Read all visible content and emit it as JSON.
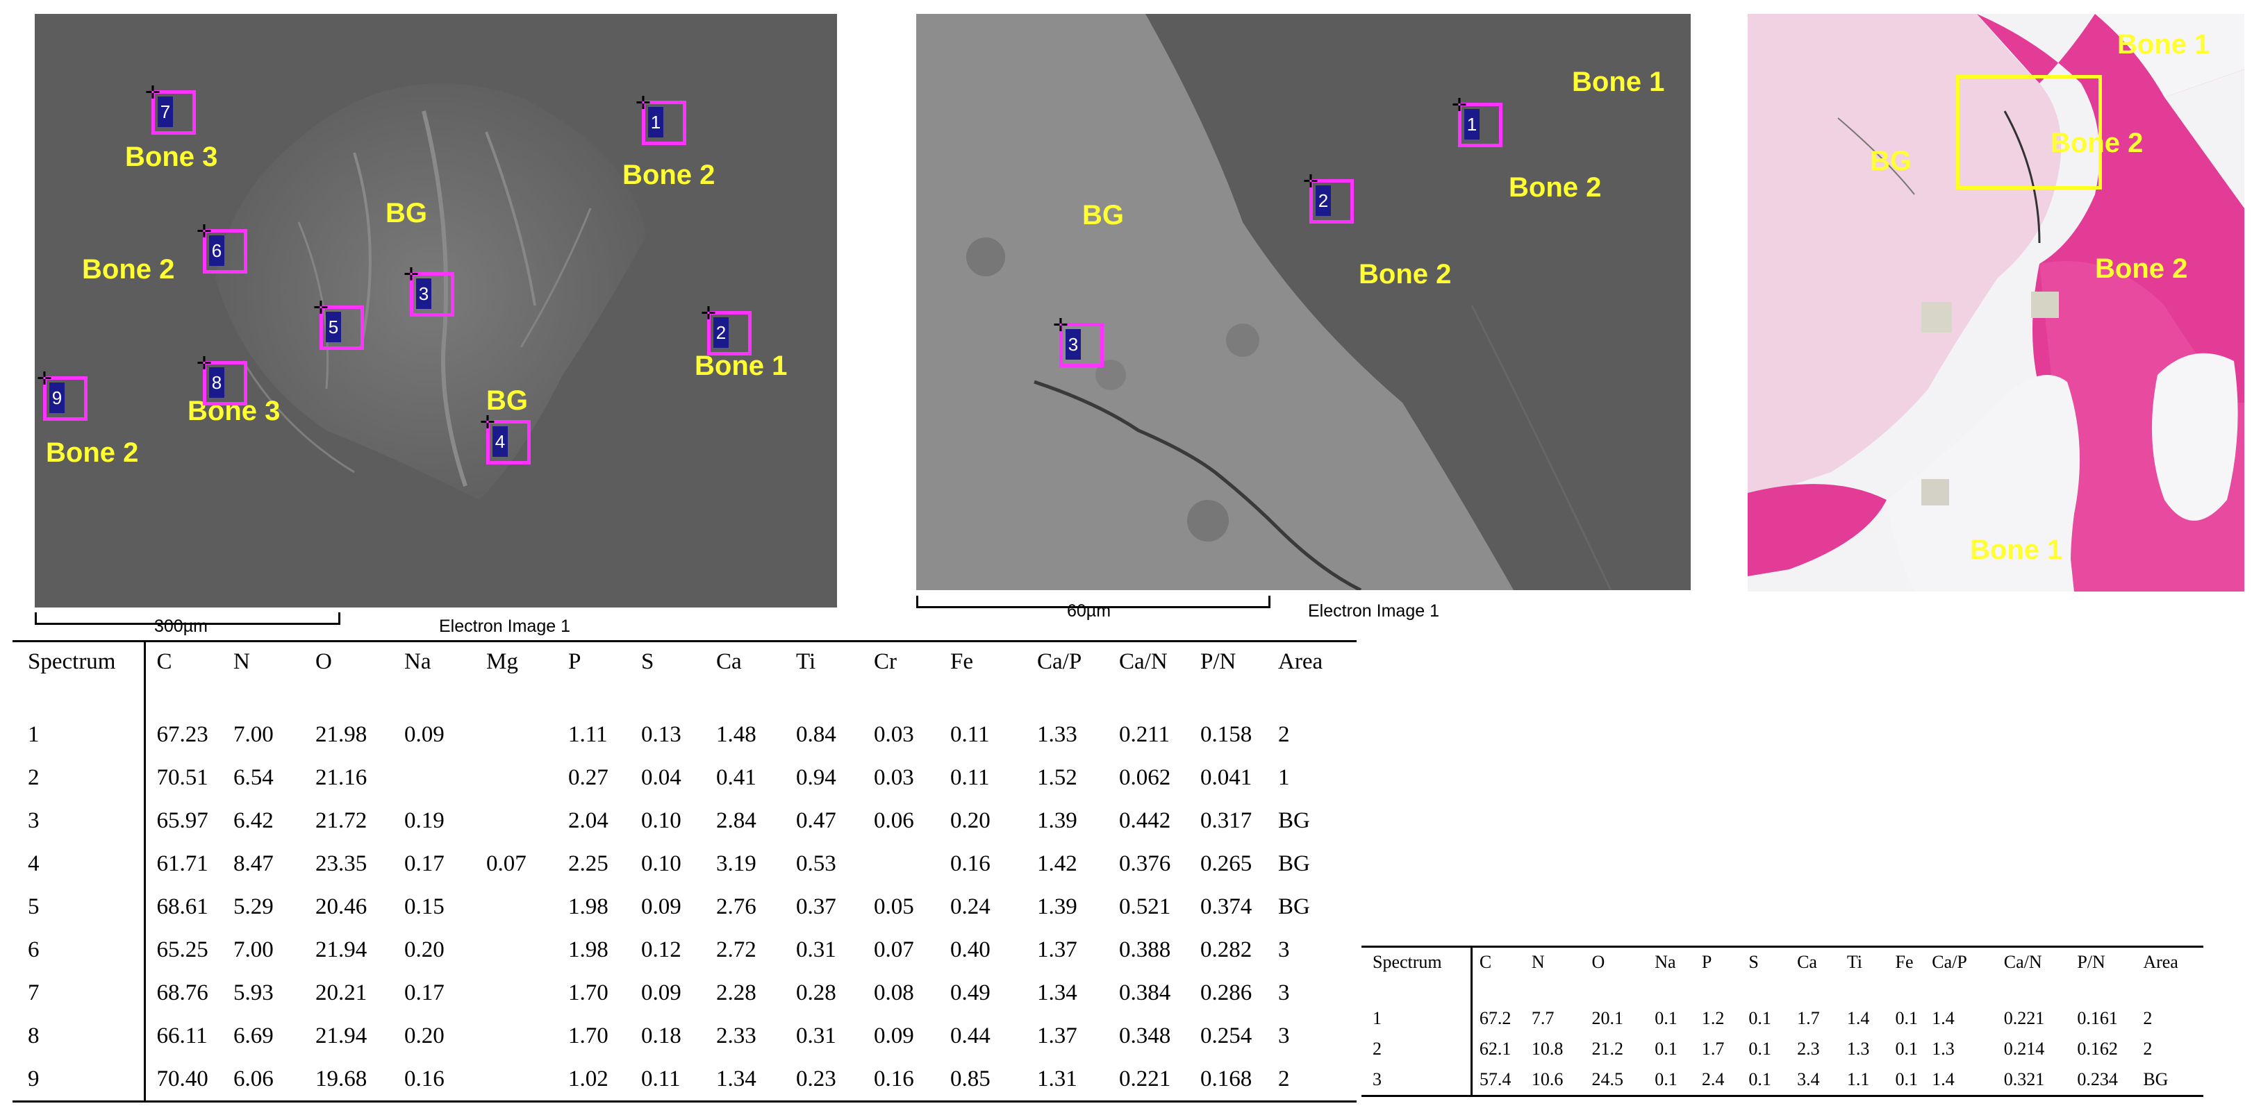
{
  "image1": {
    "labels": [
      "Bone 3",
      "Bone 2",
      "BG",
      "Bone 2",
      "Bone 2",
      "BG",
      "Bone 1",
      "Bone 3",
      "Bone 2"
    ],
    "spots": [
      "7",
      "1",
      "6",
      "3",
      "5",
      "2",
      "9",
      "8",
      "4"
    ],
    "scale_label": "300µm",
    "caption": "Electron Image 1"
  },
  "image2": {
    "labels": [
      "Bone 1",
      "Bone 2",
      "BG",
      "Bone 2"
    ],
    "spots": [
      "1",
      "2",
      "3"
    ],
    "scale_label": "60µm",
    "caption": "Electron Image 1"
  },
  "image3": {
    "labels": [
      "Bone 1",
      "BG",
      "Bone 2",
      "Bone 2",
      "Bone 1"
    ]
  },
  "table1": {
    "headers": [
      "Spectrum",
      "C",
      "N",
      "O",
      "Na",
      "Mg",
      "P",
      "S",
      "Ca",
      "Ti",
      "Cr",
      "Fe",
      "Ca/P",
      "Ca/N",
      "P/N",
      "Area"
    ],
    "rows": [
      [
        "1",
        "67.23",
        "7.00",
        "21.98",
        "0.09",
        "",
        "1.11",
        "0.13",
        "1.48",
        "0.84",
        "0.03",
        "0.11",
        "1.33",
        "0.211",
        "0.158",
        "2"
      ],
      [
        "2",
        "70.51",
        "6.54",
        "21.16",
        "",
        "",
        "0.27",
        "0.04",
        "0.41",
        "0.94",
        "0.03",
        "0.11",
        "1.52",
        "0.062",
        "0.041",
        "1"
      ],
      [
        "3",
        "65.97",
        "6.42",
        "21.72",
        "0.19",
        "",
        "2.04",
        "0.10",
        "2.84",
        "0.47",
        "0.06",
        "0.20",
        "1.39",
        "0.442",
        "0.317",
        "BG"
      ],
      [
        "4",
        "61.71",
        "8.47",
        "23.35",
        "0.17",
        "0.07",
        "2.25",
        "0.10",
        "3.19",
        "0.53",
        "",
        "0.16",
        "1.42",
        "0.376",
        "0.265",
        "BG"
      ],
      [
        "5",
        "68.61",
        "5.29",
        "20.46",
        "0.15",
        "",
        "1.98",
        "0.09",
        "2.76",
        "0.37",
        "0.05",
        "0.24",
        "1.39",
        "0.521",
        "0.374",
        "BG"
      ],
      [
        "6",
        "65.25",
        "7.00",
        "21.94",
        "0.20",
        "",
        "1.98",
        "0.12",
        "2.72",
        "0.31",
        "0.07",
        "0.40",
        "1.37",
        "0.388",
        "0.282",
        "3"
      ],
      [
        "7",
        "68.76",
        "5.93",
        "20.21",
        "0.17",
        "",
        "1.70",
        "0.09",
        "2.28",
        "0.28",
        "0.08",
        "0.49",
        "1.34",
        "0.384",
        "0.286",
        "3"
      ],
      [
        "8",
        "66.11",
        "6.69",
        "21.94",
        "0.20",
        "",
        "1.70",
        "0.18",
        "2.33",
        "0.31",
        "0.09",
        "0.44",
        "1.37",
        "0.348",
        "0.254",
        "3"
      ],
      [
        "9",
        "70.40",
        "6.06",
        "19.68",
        "0.16",
        "",
        "1.02",
        "0.11",
        "1.34",
        "0.23",
        "0.16",
        "0.85",
        "1.31",
        "0.221",
        "0.168",
        "2"
      ]
    ]
  },
  "table2": {
    "headers": [
      "Spectrum",
      "C",
      "N",
      "O",
      "Na",
      "P",
      "S",
      "Ca",
      "Ti",
      "Fe",
      "Ca/P",
      "Ca/N",
      "P/N",
      "Area"
    ],
    "rows": [
      [
        "1",
        "67.2",
        "7.7",
        "20.1",
        "0.1",
        "1.2",
        "0.1",
        "1.7",
        "1.4",
        "0.1",
        "1.4",
        "0.221",
        "0.161",
        "2"
      ],
      [
        "2",
        "62.1",
        "10.8",
        "21.2",
        "0.1",
        "1.7",
        "0.1",
        "2.3",
        "1.3",
        "0.1",
        "1.3",
        "0.214",
        "0.162",
        "2"
      ],
      [
        "3",
        "57.4",
        "10.6",
        "24.5",
        "0.1",
        "2.4",
        "0.1",
        "3.4",
        "1.1",
        "0.1",
        "1.4",
        "0.321",
        "0.234",
        "BG"
      ]
    ]
  }
}
